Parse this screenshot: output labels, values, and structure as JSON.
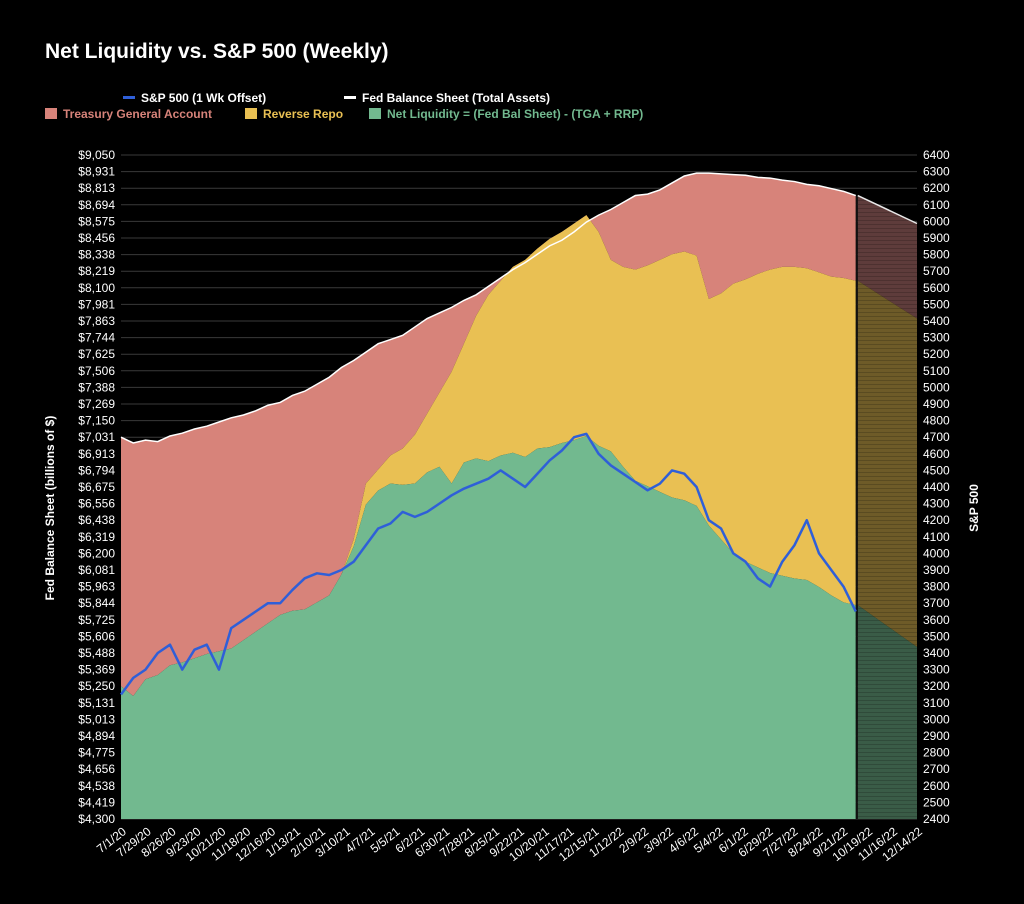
{
  "chart_data": {
    "type": "area",
    "title": "Net Liquidity vs. S&P 500 (Weekly)",
    "ylabel": "Fed Balance Sheet (billions of $)",
    "y2label": "S&P 500",
    "ylim": [
      4300,
      9050
    ],
    "y2lim": [
      2400,
      6400
    ],
    "grid": true,
    "legend_position": "top-left",
    "legend": {
      "sp500": "S&P 500 (1 Wk Offset)",
      "fed": "Fed Balance Sheet (Total Assets)",
      "tga": "Treasury General Account",
      "rrp": "Reverse Repo",
      "net": "Net Liquidity = (Fed Bal Sheet) - (TGA + RRP)"
    },
    "colors": {
      "sp500": "#2f5fd8",
      "fed": "#ffffff",
      "tga": "#d7837a",
      "rrp": "#e9c053",
      "net": "#72b98f",
      "projection_tga": "#5e3c3b",
      "projection_rrp": "#6e5b28",
      "projection_net": "#3a5c47"
    },
    "y_ticks": [
      "$9,050",
      "$8,931",
      "$8,813",
      "$8,694",
      "$8,575",
      "$8,456",
      "$8,338",
      "$8,219",
      "$8,100",
      "$7,981",
      "$7,863",
      "$7,744",
      "$7,625",
      "$7,506",
      "$7,388",
      "$7,269",
      "$7,150",
      "$7,031",
      "$6,913",
      "$6,794",
      "$6,675",
      "$6,556",
      "$6,438",
      "$6,319",
      "$6,200",
      "$6,081",
      "$5,963",
      "$5,844",
      "$5,725",
      "$5,606",
      "$5,488",
      "$5,369",
      "$5,250",
      "$5,131",
      "$5,013",
      "$4,894",
      "$4,775",
      "$4,656",
      "$4,538",
      "$4,419",
      "$4,300"
    ],
    "y2_ticks": [
      "6400",
      "6300",
      "6200",
      "6100",
      "6000",
      "5900",
      "5800",
      "5700",
      "5600",
      "5500",
      "5400",
      "5300",
      "5200",
      "5100",
      "5000",
      "4900",
      "4800",
      "4700",
      "4600",
      "4500",
      "4400",
      "4300",
      "4200",
      "4100",
      "4000",
      "3900",
      "3800",
      "3700",
      "3600",
      "3500",
      "3400",
      "3300",
      "3200",
      "3100",
      "3000",
      "2900",
      "2800",
      "2700",
      "2600",
      "2500",
      "2400"
    ],
    "x_ticks": [
      "7/1/20",
      "7/29/20",
      "8/26/20",
      "9/23/20",
      "10/21/20",
      "11/18/20",
      "12/16/20",
      "1/13/21",
      "2/10/21",
      "3/10/21",
      "4/7/21",
      "5/5/21",
      "6/2/21",
      "6/30/21",
      "7/28/21",
      "8/25/21",
      "9/22/21",
      "10/20/21",
      "11/17/21",
      "12/15/21",
      "1/12/22",
      "2/9/22",
      "3/9/22",
      "4/6/22",
      "5/4/22",
      "6/1/22",
      "6/29/22",
      "7/27/22",
      "8/24/22",
      "9/21/22",
      "10/19/22",
      "11/16/22",
      "12/14/22"
    ],
    "x_dates": [
      "2020-07-01",
      "2020-07-15",
      "2020-07-29",
      "2020-08-12",
      "2020-08-26",
      "2020-09-09",
      "2020-09-23",
      "2020-10-07",
      "2020-10-21",
      "2020-11-04",
      "2020-11-18",
      "2020-12-02",
      "2020-12-16",
      "2020-12-30",
      "2021-01-13",
      "2021-01-27",
      "2021-02-10",
      "2021-02-24",
      "2021-03-10",
      "2021-03-24",
      "2021-04-07",
      "2021-04-21",
      "2021-05-05",
      "2021-05-19",
      "2021-06-02",
      "2021-06-16",
      "2021-06-30",
      "2021-07-14",
      "2021-07-28",
      "2021-08-11",
      "2021-08-25",
      "2021-09-08",
      "2021-09-22",
      "2021-10-06",
      "2021-10-20",
      "2021-11-03",
      "2021-11-17",
      "2021-12-01",
      "2021-12-15",
      "2021-12-29",
      "2022-01-12",
      "2022-01-26",
      "2022-02-09",
      "2022-02-23",
      "2022-03-09",
      "2022-03-23",
      "2022-04-06",
      "2022-04-20",
      "2022-05-04",
      "2022-05-18",
      "2022-06-01",
      "2022-06-15",
      "2022-06-29",
      "2022-07-13",
      "2022-07-27",
      "2022-08-10",
      "2022-08-24",
      "2022-09-07",
      "2022-09-21",
      "2022-10-05",
      "2022-10-19"
    ],
    "fed_balance_sheet": [
      7031,
      6990,
      7010,
      7000,
      7040,
      7060,
      7090,
      7110,
      7140,
      7170,
      7190,
      7220,
      7260,
      7280,
      7330,
      7360,
      7410,
      7460,
      7530,
      7580,
      7640,
      7700,
      7730,
      7760,
      7820,
      7880,
      7920,
      7960,
      8010,
      8050,
      8110,
      8170,
      8230,
      8280,
      8340,
      8400,
      8440,
      8500,
      8570,
      8620,
      8660,
      8710,
      8760,
      8770,
      8800,
      8850,
      8900,
      8920,
      8920,
      8915,
      8910,
      8905,
      8890,
      8885,
      8870,
      8860,
      8840,
      8830,
      8810,
      8790,
      8760
    ],
    "net_liquidity": [
      5250,
      5180,
      5300,
      5330,
      5400,
      5420,
      5450,
      5480,
      5500,
      5520,
      5580,
      5640,
      5700,
      5760,
      5790,
      5800,
      5850,
      5900,
      6050,
      6250,
      6550,
      6650,
      6700,
      6690,
      6700,
      6780,
      6820,
      6700,
      6850,
      6880,
      6860,
      6900,
      6920,
      6890,
      6950,
      6960,
      6990,
      7010,
      7040,
      6970,
      6930,
      6820,
      6720,
      6680,
      6640,
      6600,
      6580,
      6540,
      6400,
      6300,
      6200,
      6140,
      6100,
      6060,
      6040,
      6020,
      6010,
      5960,
      5900,
      5850,
      5830
    ],
    "rrp_top": [
      5250,
      5180,
      5300,
      5330,
      5400,
      5420,
      5450,
      5480,
      5500,
      5520,
      5580,
      5640,
      5700,
      5760,
      5790,
      5800,
      5850,
      5900,
      6050,
      6300,
      6700,
      6800,
      6900,
      6950,
      7050,
      7200,
      7350,
      7500,
      7700,
      7900,
      8050,
      8150,
      8250,
      8300,
      8380,
      8450,
      8500,
      8560,
      8620,
      8500,
      8300,
      8250,
      8230,
      8260,
      8300,
      8340,
      8360,
      8330,
      8020,
      8060,
      8130,
      8160,
      8200,
      8230,
      8250,
      8250,
      8240,
      8210,
      8180,
      8170,
      8150
    ],
    "sp500": [
      3150,
      3250,
      3300,
      3400,
      3450,
      3300,
      3420,
      3450,
      3300,
      3550,
      3600,
      3650,
      3700,
      3700,
      3780,
      3850,
      3880,
      3870,
      3900,
      3950,
      4050,
      4150,
      4180,
      4250,
      4220,
      4250,
      4300,
      4350,
      4390,
      4420,
      4450,
      4500,
      4450,
      4400,
      4480,
      4560,
      4620,
      4700,
      4720,
      4600,
      4530,
      4480,
      4430,
      4380,
      4420,
      4500,
      4480,
      4400,
      4200,
      4150,
      4000,
      3950,
      3850,
      3800,
      3950,
      4050,
      4200,
      4000,
      3900,
      3800,
      3650
    ],
    "projection": {
      "x_dates": [
        "2022-10-19",
        "2022-12-28"
      ],
      "fed": [
        8760,
        8560
      ],
      "rrp_top": [
        8150,
        7880
      ],
      "net": [
        5830,
        5530
      ]
    }
  }
}
